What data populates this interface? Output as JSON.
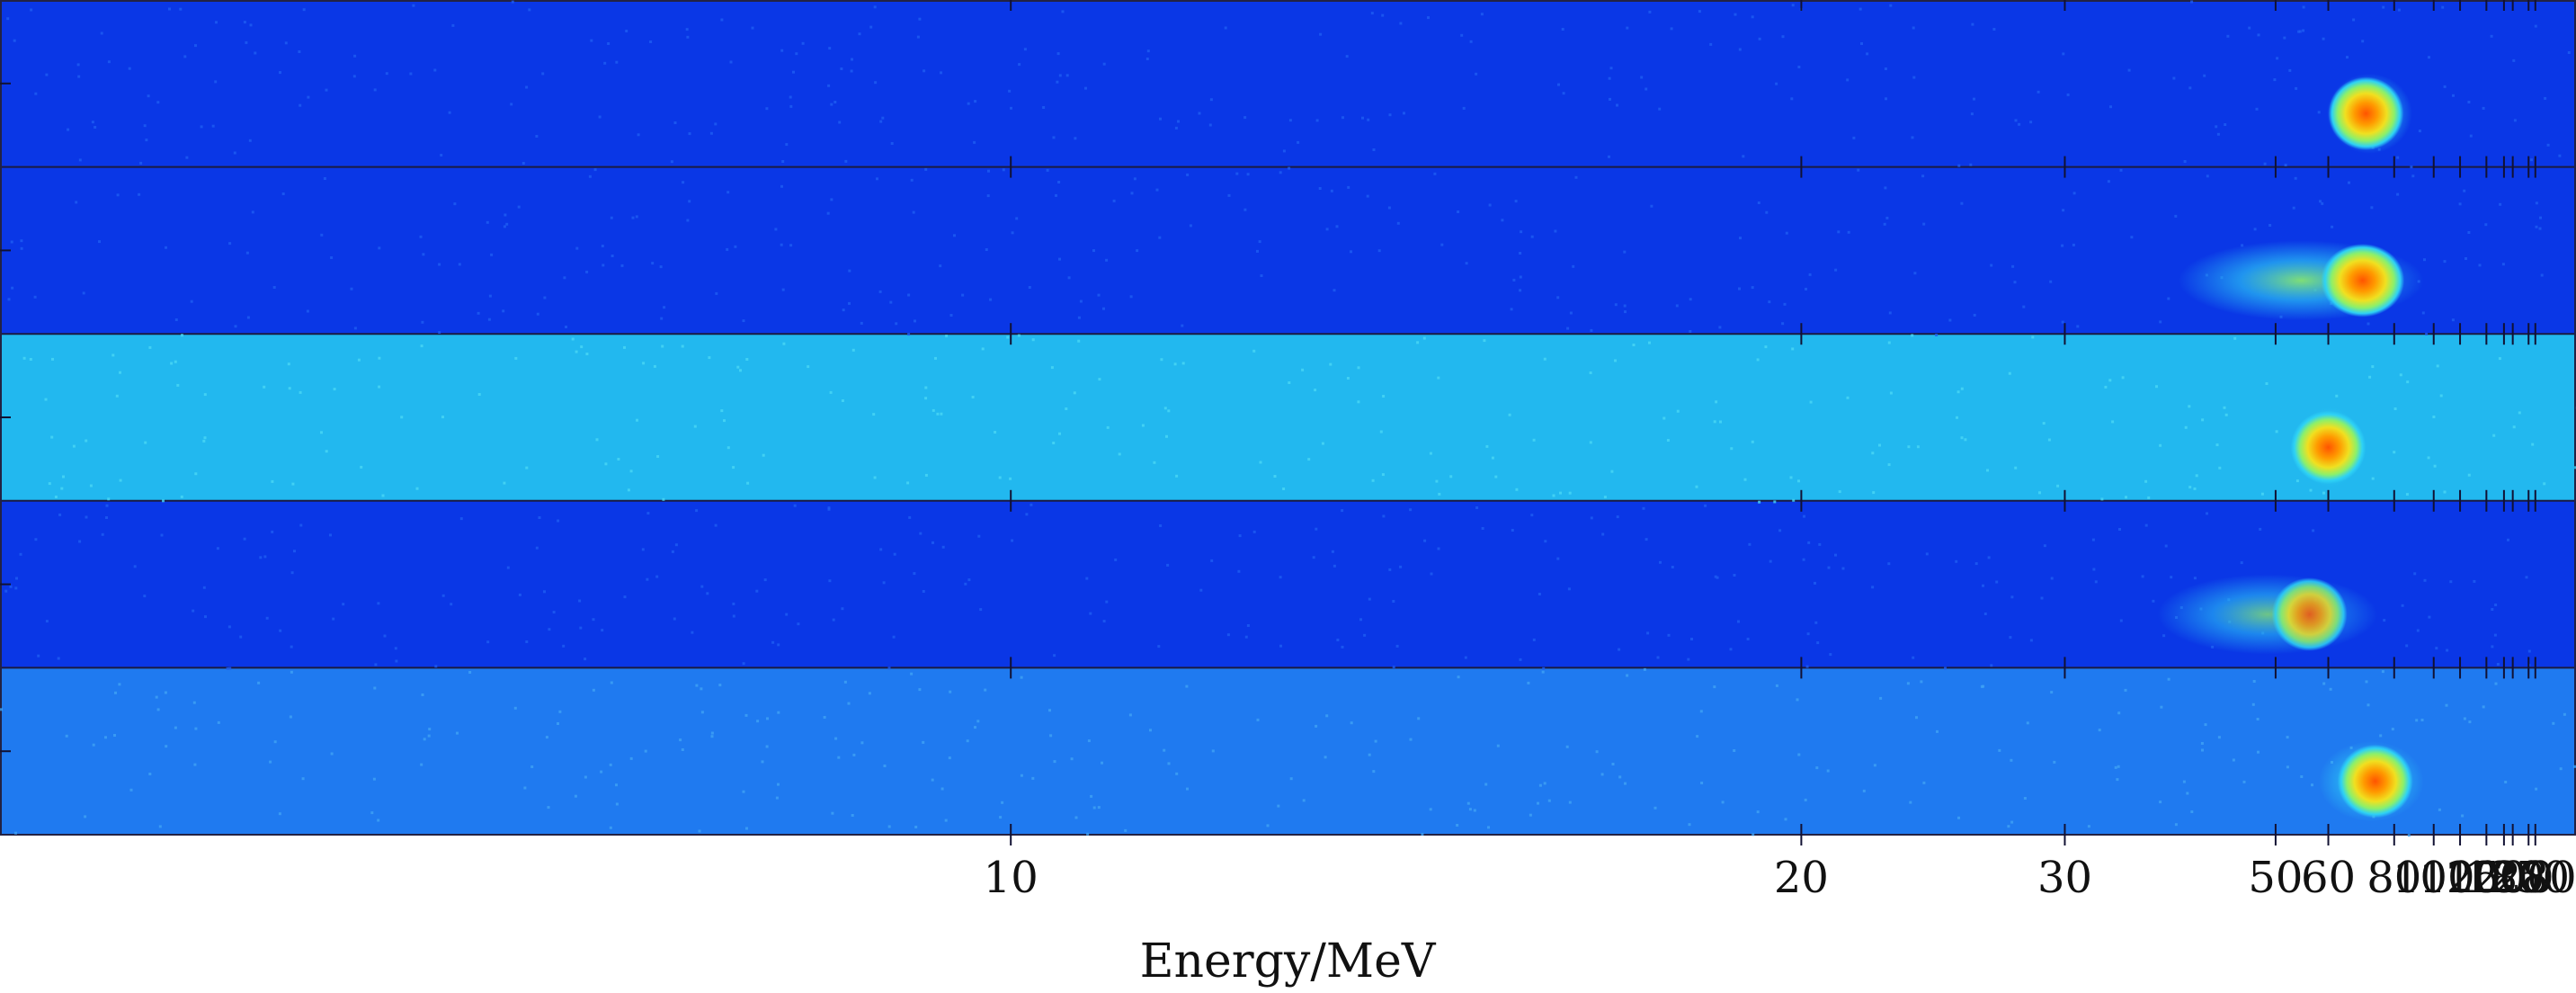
{
  "chart_data": {
    "type": "heatmap",
    "title": "",
    "xlabel": "Energy/MeV",
    "ylabel": "",
    "x_scale": "reciprocal",
    "xlim": [
      6.1,
      1000
    ],
    "grid": false,
    "legend": "none",
    "x_ticks": [
      10,
      20,
      30,
      50,
      60,
      80,
      100,
      120,
      150,
      180,
      200,
      250,
      280
    ],
    "colormap": [
      "#0010c0",
      "#0a3ae8",
      "#1f7af5",
      "#2ed2f5",
      "#8cf06a",
      "#f0e020",
      "#ff9a00",
      "#ff5400"
    ],
    "panels": [
      {
        "name": "",
        "background": "#0a37e6",
        "noise": "#1e5cf2",
        "spots": [
          {
            "energy": 70,
            "intensity": 1.0,
            "energy_spread": [
              64,
              80
            ]
          }
        ]
      },
      {
        "name": "",
        "background": "#0a37e6",
        "noise": "#1e5cf2",
        "spots": [
          {
            "energy": 69,
            "intensity": 1.0,
            "energy_spread": [
              40,
              85
            ]
          }
        ]
      },
      {
        "name": "",
        "background": "#22b8ef",
        "noise": "#4ad7f5",
        "spots": [
          {
            "energy": 60,
            "intensity": 1.0,
            "energy_spread": [
              57,
              64
            ]
          }
        ]
      },
      {
        "name": "",
        "background": "#0a37e6",
        "noise": "#1e5cf2",
        "spots": [
          {
            "energy": 56,
            "intensity": 0.85,
            "energy_spread": [
              38,
              68
            ]
          }
        ]
      },
      {
        "name": "",
        "background": "#1f7af0",
        "noise": "#3ea2f5",
        "spots": [
          {
            "energy": 73,
            "intensity": 1.0,
            "energy_spread": [
              62,
              85
            ]
          }
        ]
      }
    ]
  }
}
